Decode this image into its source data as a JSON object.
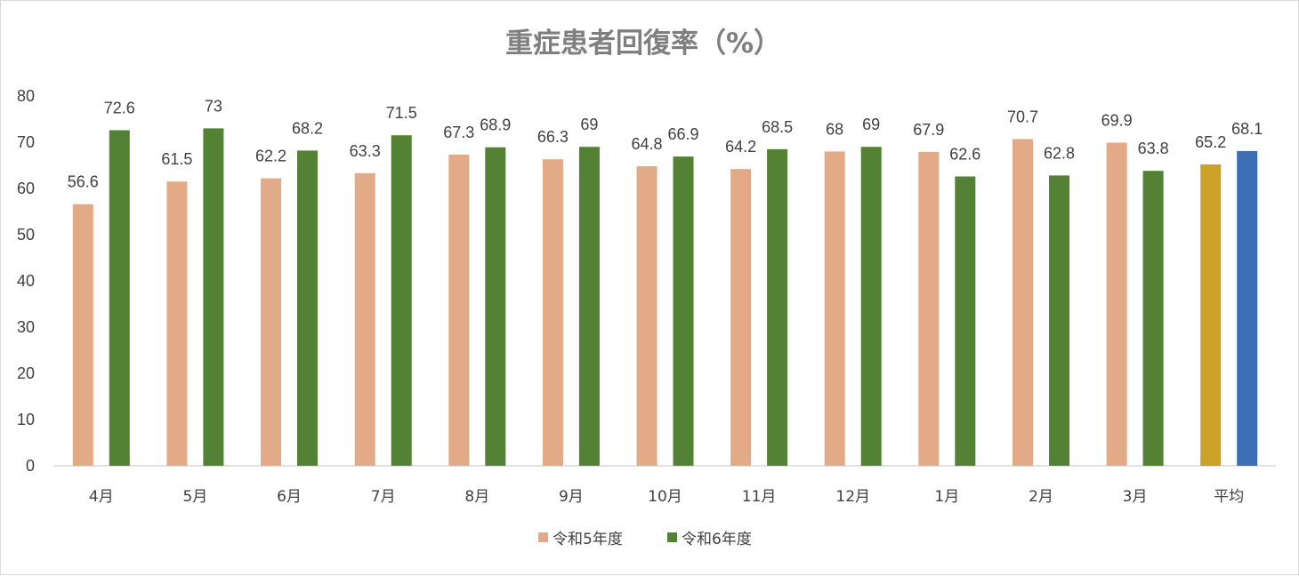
{
  "chart_data": {
    "type": "bar",
    "title": "重症患者回復率（%）",
    "xlabel": "",
    "ylabel": "",
    "ylim": [
      0,
      80
    ],
    "yticks": [
      0,
      10,
      20,
      30,
      40,
      50,
      60,
      70,
      80
    ],
    "grid": false,
    "legend_position": "bottom",
    "categories": [
      "4月",
      "5月",
      "6月",
      "7月",
      "8月",
      "9月",
      "10月",
      "11月",
      "12月",
      "1月",
      "2月",
      "3月",
      "平均"
    ],
    "series": [
      {
        "name": "令和5年度",
        "color": "#e3aa87",
        "values": [
          56.6,
          61.5,
          62.2,
          63.3,
          67.3,
          66.3,
          64.8,
          64.2,
          68,
          67.9,
          70.7,
          69.9,
          65.2
        ]
      },
      {
        "name": "令和6年度",
        "color": "#548235",
        "values": [
          72.6,
          73,
          68.2,
          71.5,
          68.9,
          69,
          66.9,
          68.5,
          69,
          62.6,
          62.8,
          63.8,
          68.1
        ]
      }
    ],
    "point_colors": {
      "平均": [
        "#c9a227",
        "#3c6eb4"
      ]
    }
  }
}
